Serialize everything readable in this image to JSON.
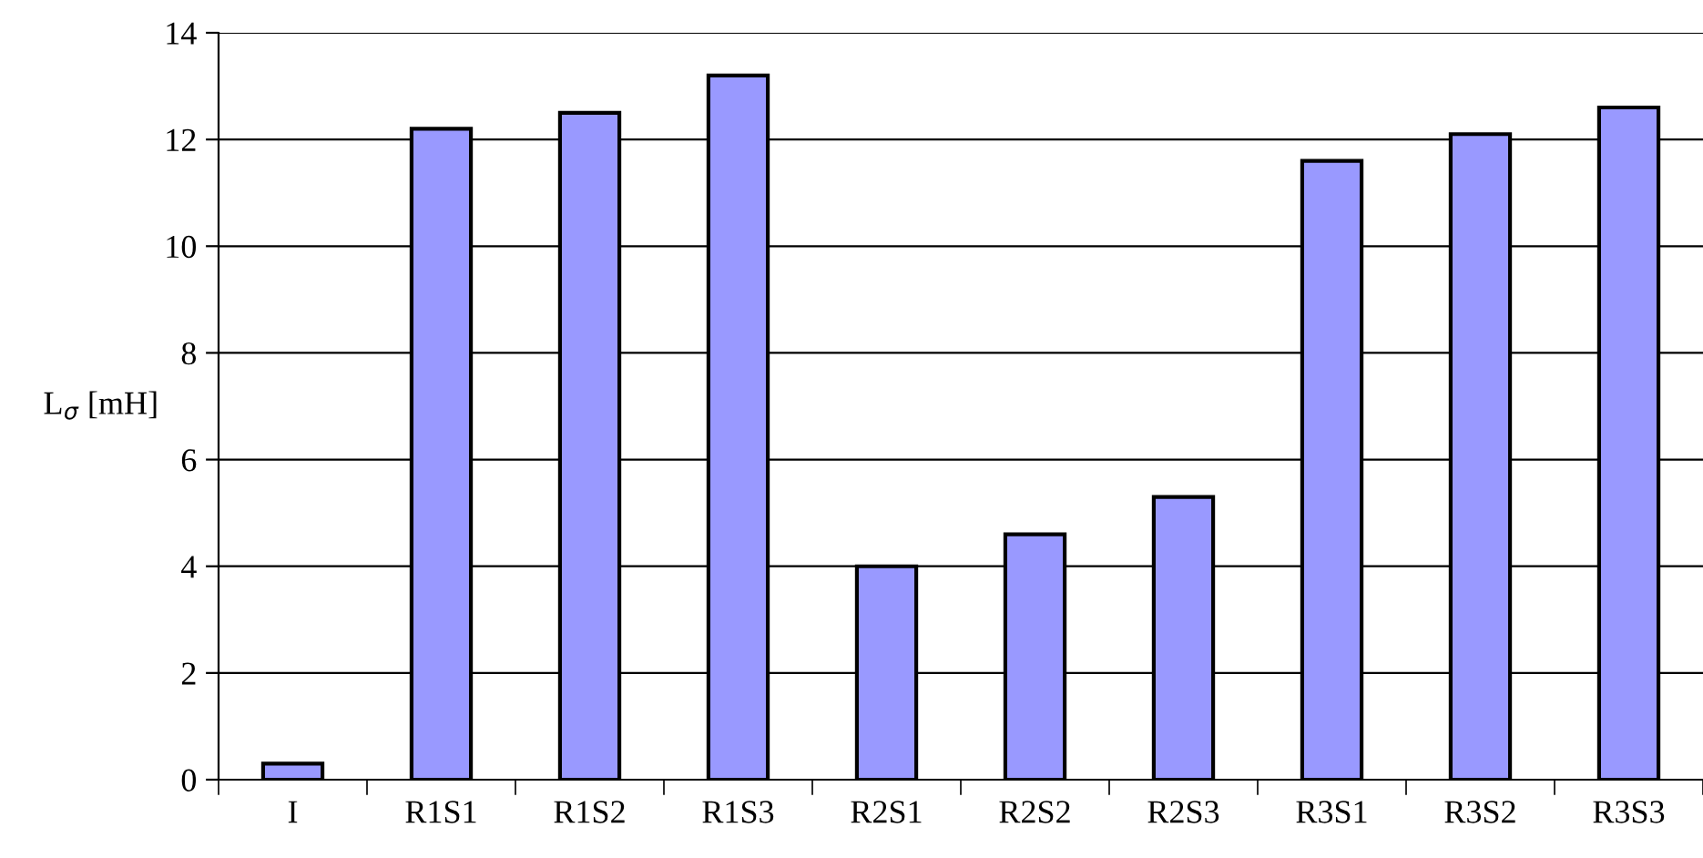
{
  "chart_data": {
    "type": "bar",
    "ylabel": "L$_{σ}$ [mH]",
    "categories": [
      "I",
      "R1S1",
      "R1S2",
      "R1S3",
      "R2S1",
      "R2S2",
      "R2S3",
      "R3S1",
      "R3S2",
      "R3S3"
    ],
    "values": [
      0.3,
      12.2,
      12.5,
      13.2,
      4.0,
      4.6,
      5.3,
      11.6,
      12.1,
      12.6
    ],
    "color": "#9999ff",
    "ylim": [
      0,
      14
    ],
    "yticks": [
      0,
      2,
      4,
      6,
      8,
      10,
      12,
      14
    ],
    "grid": "y",
    "legend": false
  }
}
